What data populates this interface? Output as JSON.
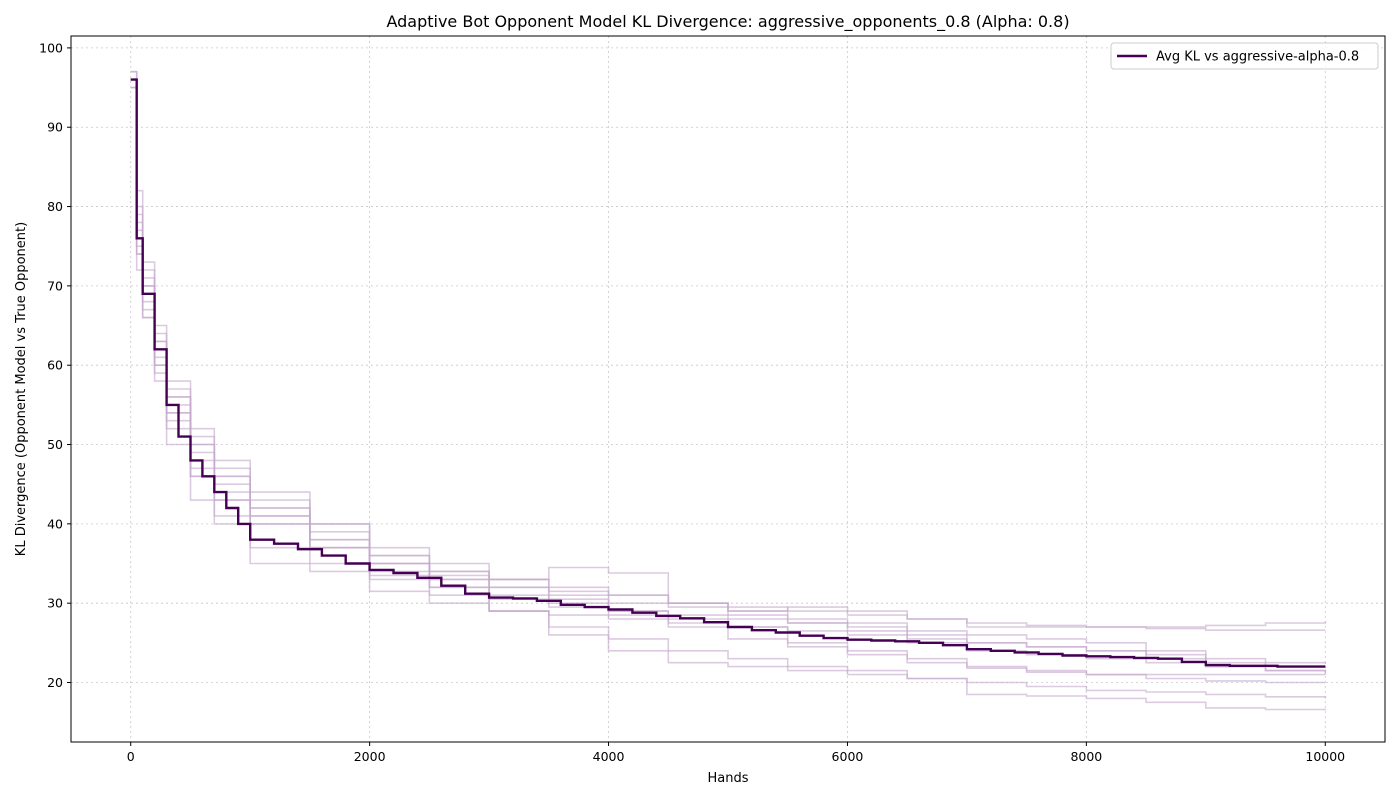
{
  "chart_data": {
    "type": "line",
    "title": "Adaptive Bot Opponent Model KL Divergence: aggressive_opponents_0.8 (Alpha: 0.8)",
    "xlabel": "Hands",
    "ylabel": "KL Divergence (Opponent Model vs True Opponent)",
    "xlim": [
      -500,
      10500
    ],
    "ylim": [
      12.5,
      101.5
    ],
    "xticks": [
      0,
      2000,
      4000,
      6000,
      8000,
      10000
    ],
    "yticks": [
      20,
      30,
      40,
      50,
      60,
      70,
      80,
      90,
      100
    ],
    "grid": true,
    "legend_position": "top-right",
    "colors": {
      "average": "#440154",
      "runs": "#c4a9cc"
    },
    "average": {
      "name": "Avg KL vs aggressive-alpha-0.8",
      "x": [
        0,
        50,
        100,
        200,
        300,
        400,
        500,
        600,
        700,
        800,
        900,
        1000,
        1200,
        1400,
        1600,
        1800,
        2000,
        2200,
        2400,
        2600,
        2800,
        3000,
        3200,
        3400,
        3600,
        3800,
        4000,
        4200,
        4400,
        4600,
        4800,
        5000,
        5200,
        5400,
        5600,
        5800,
        6000,
        6200,
        6400,
        6600,
        6800,
        7000,
        7200,
        7400,
        7600,
        7800,
        8000,
        8200,
        8400,
        8600,
        8800,
        9000,
        9200,
        9400,
        9600,
        9800,
        10000
      ],
      "y": [
        96,
        76,
        69,
        62,
        55,
        51,
        48,
        46,
        44,
        42,
        40,
        38,
        37.5,
        36.8,
        36,
        35,
        34.2,
        33.8,
        33.2,
        32.2,
        31.2,
        30.7,
        30.6,
        30.3,
        29.8,
        29.5,
        29.2,
        28.8,
        28.4,
        28.1,
        27.6,
        27.0,
        26.6,
        26.3,
        25.9,
        25.6,
        25.4,
        25.3,
        25.2,
        25.0,
        24.7,
        24.2,
        24.0,
        23.8,
        23.6,
        23.4,
        23.3,
        23.2,
        23.1,
        23.0,
        22.6,
        22.2,
        22.1,
        22.1,
        22.0,
        22.0,
        22.0
      ]
    },
    "runs": [
      {
        "x": [
          0,
          50,
          100,
          200,
          300,
          500,
          700,
          1000,
          1500,
          2000,
          2500,
          3000,
          3500,
          4000,
          4500,
          5000,
          5500,
          6000,
          6500,
          7000,
          7500,
          8000,
          8500,
          9000,
          9500,
          10000
        ],
        "y": [
          97,
          80,
          72,
          64,
          57,
          50,
          46,
          43,
          40,
          36,
          34,
          33,
          32,
          31,
          30,
          29.5,
          29,
          28.5,
          28,
          27.5,
          27.2,
          27,
          26.8,
          26.6,
          26.6,
          26.6
        ]
      },
      {
        "x": [
          0,
          50,
          100,
          200,
          300,
          500,
          700,
          1000,
          1500,
          2000,
          2500,
          3000,
          3500,
          4000,
          4500,
          5000,
          5500,
          6000,
          6500,
          7000,
          7500,
          8000,
          8500,
          9000,
          9500,
          10000
        ],
        "y": [
          95,
          74,
          67,
          60,
          53,
          46,
          41,
          37,
          35,
          33.5,
          32,
          30.5,
          29.5,
          28.5,
          27,
          25.5,
          24.5,
          23.5,
          22.5,
          21.8,
          21.3,
          21,
          21,
          21,
          21,
          21
        ]
      },
      {
        "x": [
          0,
          50,
          100,
          200,
          300,
          500,
          700,
          1000,
          1500,
          2000,
          2500,
          3000,
          3500,
          4000,
          4500,
          5000,
          5500,
          6000,
          6500,
          7000,
          7500,
          8000,
          8500,
          9000,
          9500,
          10000
        ],
        "y": [
          96,
          78,
          70,
          61,
          54,
          47,
          43,
          40,
          37,
          34,
          33,
          32,
          31.5,
          31,
          30,
          28.5,
          27.5,
          27,
          26.5,
          26,
          25.5,
          25,
          24,
          22.5,
          22,
          21.8
        ]
      },
      {
        "x": [
          0,
          50,
          100,
          200,
          300,
          500,
          700,
          1000,
          1500,
          2000,
          2500,
          3000,
          3500,
          4000,
          4500,
          5000,
          5500,
          6000,
          6500,
          7000,
          7500,
          8000,
          8500,
          9000,
          9500,
          10000
        ],
        "y": [
          96,
          72,
          66,
          58,
          50,
          43,
          40,
          35,
          34,
          31.5,
          30,
          29,
          28.5,
          28,
          27.5,
          27,
          26.5,
          26,
          25,
          24,
          23.5,
          23,
          22.5,
          22,
          21.5,
          21.3
        ]
      },
      {
        "x": [
          0,
          50,
          100,
          200,
          300,
          500,
          700,
          1000,
          1500,
          2000,
          2500,
          3000,
          3500,
          4000,
          4500,
          5000,
          5500,
          6000,
          6500,
          7000,
          7500,
          8000,
          8500,
          9000,
          9500,
          10000
        ],
        "y": [
          97,
          82,
          73,
          65,
          58,
          52,
          47,
          42,
          38,
          35,
          32,
          29,
          27,
          25.5,
          24,
          23,
          22,
          21,
          20.5,
          20,
          19.5,
          19,
          18.8,
          18.5,
          18.2,
          18
        ]
      },
      {
        "x": [
          0,
          50,
          100,
          200,
          300,
          500,
          700,
          1000,
          1500,
          2000,
          2500,
          3000,
          3500,
          4000,
          4500,
          5000,
          5500,
          6000,
          6500,
          7000,
          7500,
          8000,
          8500,
          9000,
          9500,
          10000
        ],
        "y": [
          96,
          76,
          69,
          62,
          55,
          49,
          45,
          41,
          37,
          33,
          31,
          29,
          26,
          24,
          22.5,
          22,
          21.5,
          21.5,
          20.5,
          18.5,
          18.3,
          18,
          17.5,
          16.8,
          16.6,
          16.5
        ]
      },
      {
        "x": [
          0,
          50,
          100,
          200,
          300,
          500,
          700,
          1000,
          1500,
          2000,
          2500,
          3000,
          3500,
          4000,
          4500,
          5000,
          5500,
          6000,
          6500,
          7000,
          7500,
          8000,
          8500,
          9000,
          9500,
          10000
        ],
        "y": [
          95,
          75,
          68,
          60,
          54,
          48,
          44,
          41,
          38,
          35,
          33.5,
          33,
          34.5,
          33.8,
          30,
          29,
          28,
          27.5,
          26,
          25,
          24.5,
          24,
          23,
          22,
          21.5,
          21
        ]
      },
      {
        "x": [
          0,
          50,
          100,
          200,
          300,
          500,
          700,
          1000,
          1500,
          2000,
          2500,
          3000,
          3500,
          4000,
          4500,
          5000,
          5500,
          6000,
          6500,
          7000,
          7500,
          8000,
          8500,
          9000,
          9500,
          10000
        ],
        "y": [
          96,
          77,
          70,
          63,
          56,
          51,
          48,
          44,
          40,
          37,
          35,
          33,
          31,
          30,
          29.5,
          29,
          29.5,
          29,
          28,
          27,
          27,
          27,
          27,
          27.2,
          27.5,
          27.7
        ]
      },
      {
        "x": [
          0,
          50,
          100,
          200,
          300,
          500,
          700,
          1000,
          1500,
          2000,
          2500,
          3000,
          3500,
          4000,
          4500,
          5000,
          5500,
          6000,
          6500,
          7000,
          7500,
          8000,
          8500,
          9000,
          9500,
          10000
        ],
        "y": [
          96,
          79,
          71,
          63,
          56,
          50,
          46,
          42,
          39,
          36,
          34,
          32,
          30.5,
          29,
          28,
          27,
          25,
          24,
          23,
          22,
          21.5,
          21,
          20.5,
          20.2,
          20,
          20
        ]
      },
      {
        "x": [
          0,
          50,
          100,
          200,
          300,
          500,
          700,
          1000,
          1500,
          2000,
          2500,
          3000,
          3500,
          4000,
          4500,
          5000,
          5500,
          6000,
          6500,
          7000,
          7500,
          8000,
          8500,
          9000,
          9500,
          10000
        ],
        "y": [
          96,
          74,
          66,
          59,
          52,
          46,
          43,
          40,
          37,
          35,
          33,
          31,
          30,
          29,
          28.5,
          28,
          27.5,
          26.5,
          25.5,
          25,
          24.5,
          24,
          23.5,
          23,
          22.5,
          22.3
        ]
      }
    ]
  }
}
